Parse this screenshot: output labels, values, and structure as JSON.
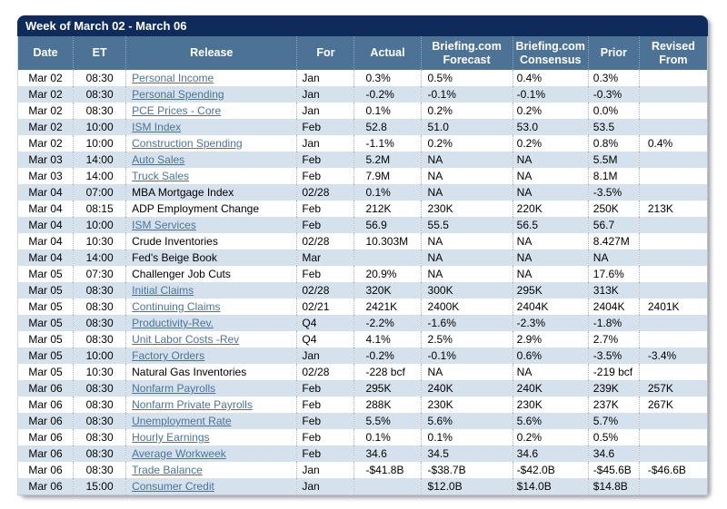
{
  "window": {
    "title": "Week of March 02 - March 06"
  },
  "colors": {
    "title_bar": "#0E2B5C",
    "header_bg": "#4C7396",
    "header_text": "#FFFFFF",
    "alt_row": "#D5E2EE",
    "link": "#4C7397",
    "body_text": "#000000"
  },
  "table": {
    "columns": [
      {
        "key": "date",
        "label": "Date"
      },
      {
        "key": "et",
        "label": "ET"
      },
      {
        "key": "release",
        "label": "Release"
      },
      {
        "key": "for",
        "label": "For"
      },
      {
        "key": "actual",
        "label": "Actual"
      },
      {
        "key": "forecast",
        "label": "Briefing.com\nForecast"
      },
      {
        "key": "consensus",
        "label": "Briefing.com\nConsensus"
      },
      {
        "key": "prior",
        "label": "Prior"
      },
      {
        "key": "revised",
        "label": "Revised\nFrom"
      }
    ],
    "rows": [
      {
        "date": "Mar 02",
        "et": "08:30",
        "release": "Personal Income",
        "is_link": true,
        "for": "Jan",
        "actual": "0.3%",
        "forecast": "0.5%",
        "consensus": "0.4%",
        "prior": "0.3%",
        "revised": ""
      },
      {
        "date": "Mar 02",
        "et": "08:30",
        "release": "Personal Spending",
        "is_link": true,
        "for": "Jan",
        "actual": "-0.2%",
        "forecast": "-0.1%",
        "consensus": "-0.1%",
        "prior": "-0.3%",
        "revised": ""
      },
      {
        "date": "Mar 02",
        "et": "08:30",
        "release": "PCE Prices - Core",
        "is_link": true,
        "for": "Jan",
        "actual": "0.1%",
        "forecast": "0.2%",
        "consensus": "0.2%",
        "prior": "0.0%",
        "revised": ""
      },
      {
        "date": "Mar 02",
        "et": "10:00",
        "release": "ISM Index",
        "is_link": true,
        "for": "Feb",
        "actual": "52.8",
        "forecast": "51.0",
        "consensus": "53.0",
        "prior": "53.5",
        "revised": ""
      },
      {
        "date": "Mar 02",
        "et": "10:00",
        "release": "Construction Spending",
        "is_link": true,
        "for": "Jan",
        "actual": "-1.1%",
        "forecast": "0.2%",
        "consensus": "0.2%",
        "prior": "0.8%",
        "revised": "0.4%"
      },
      {
        "date": "Mar 03",
        "et": "14:00",
        "release": "Auto Sales",
        "is_link": true,
        "for": "Feb",
        "actual": "5.2M",
        "forecast": "NA",
        "consensus": "NA",
        "prior": "5.5M",
        "revised": ""
      },
      {
        "date": "Mar 03",
        "et": "14:00",
        "release": "Truck Sales",
        "is_link": true,
        "for": "Feb",
        "actual": "7.9M",
        "forecast": "NA",
        "consensus": "NA",
        "prior": "8.1M",
        "revised": ""
      },
      {
        "date": "Mar 04",
        "et": "07:00",
        "release": "MBA Mortgage Index",
        "is_link": false,
        "for": "02/28",
        "actual": "0.1%",
        "forecast": "NA",
        "consensus": "NA",
        "prior": "-3.5%",
        "revised": ""
      },
      {
        "date": "Mar 04",
        "et": "08:15",
        "release": "ADP Employment Change",
        "is_link": false,
        "for": "Feb",
        "actual": "212K",
        "forecast": "230K",
        "consensus": "220K",
        "prior": "250K",
        "revised": "213K"
      },
      {
        "date": "Mar 04",
        "et": "10:00",
        "release": "ISM Services",
        "is_link": true,
        "for": "Feb",
        "actual": "56.9",
        "forecast": "55.5",
        "consensus": "56.5",
        "prior": "56.7",
        "revised": ""
      },
      {
        "date": "Mar 04",
        "et": "10:30",
        "release": "Crude Inventories",
        "is_link": false,
        "for": "02/28",
        "actual": "10.303M",
        "forecast": "NA",
        "consensus": "NA",
        "prior": "8.427M",
        "revised": ""
      },
      {
        "date": "Mar 04",
        "et": "14:00",
        "release": "Fed's Beige Book",
        "is_link": false,
        "for": "Mar",
        "actual": "",
        "forecast": "NA",
        "consensus": "NA",
        "prior": "NA",
        "revised": ""
      },
      {
        "date": "Mar 05",
        "et": "07:30",
        "release": "Challenger Job Cuts",
        "is_link": false,
        "for": "Feb",
        "actual": "20.9%",
        "forecast": "NA",
        "consensus": "NA",
        "prior": "17.6%",
        "revised": ""
      },
      {
        "date": "Mar 05",
        "et": "08:30",
        "release": "Initial Claims",
        "is_link": true,
        "for": "02/28",
        "actual": "320K",
        "forecast": "300K",
        "consensus": "295K",
        "prior": "313K",
        "revised": ""
      },
      {
        "date": "Mar 05",
        "et": "08:30",
        "release": "Continuing Claims",
        "is_link": true,
        "for": "02/21",
        "actual": "2421K",
        "forecast": "2400K",
        "consensus": "2404K",
        "prior": "2404K",
        "revised": "2401K"
      },
      {
        "date": "Mar 05",
        "et": "08:30",
        "release": "Productivity-Rev.",
        "is_link": true,
        "for": "Q4",
        "actual": "-2.2%",
        "forecast": "-1.6%",
        "consensus": "-2.3%",
        "prior": "-1.8%",
        "revised": ""
      },
      {
        "date": "Mar 05",
        "et": "08:30",
        "release": "Unit Labor Costs -Rev",
        "is_link": true,
        "for": "Q4",
        "actual": "4.1%",
        "forecast": "2.5%",
        "consensus": "2.9%",
        "prior": "2.7%",
        "revised": ""
      },
      {
        "date": "Mar 05",
        "et": "10:00",
        "release": "Factory Orders",
        "is_link": true,
        "for": "Jan",
        "actual": "-0.2%",
        "forecast": "-0.1%",
        "consensus": "0.6%",
        "prior": "-3.5%",
        "revised": "-3.4%"
      },
      {
        "date": "Mar 05",
        "et": "10:30",
        "release": "Natural Gas Inventories",
        "is_link": false,
        "for": "02/28",
        "actual": "-228 bcf",
        "forecast": "NA",
        "consensus": "NA",
        "prior": "-219 bcf",
        "revised": ""
      },
      {
        "date": "Mar 06",
        "et": "08:30",
        "release": "Nonfarm Payrolls",
        "is_link": true,
        "for": "Feb",
        "actual": "295K",
        "forecast": "240K",
        "consensus": "240K",
        "prior": "239K",
        "revised": "257K"
      },
      {
        "date": "Mar 06",
        "et": "08:30",
        "release": "Nonfarm Private Payrolls",
        "is_link": true,
        "for": "Feb",
        "actual": "288K",
        "forecast": "230K",
        "consensus": "230K",
        "prior": "237K",
        "revised": "267K"
      },
      {
        "date": "Mar 06",
        "et": "08:30",
        "release": "Unemployment Rate",
        "is_link": true,
        "for": "Feb",
        "actual": "5.5%",
        "forecast": "5.6%",
        "consensus": "5.6%",
        "prior": "5.7%",
        "revised": ""
      },
      {
        "date": "Mar 06",
        "et": "08:30",
        "release": "Hourly Earnings",
        "is_link": true,
        "for": "Feb",
        "actual": "0.1%",
        "forecast": "0.1%",
        "consensus": "0.2%",
        "prior": "0.5%",
        "revised": ""
      },
      {
        "date": "Mar 06",
        "et": "08:30",
        "release": "Average Workweek",
        "is_link": true,
        "for": "Feb",
        "actual": "34.6",
        "forecast": "34.5",
        "consensus": "34.6",
        "prior": "34.6",
        "revised": ""
      },
      {
        "date": "Mar 06",
        "et": "08:30",
        "release": "Trade Balance",
        "is_link": true,
        "for": "Jan",
        "actual": "-$41.8B",
        "forecast": "-$38.7B",
        "consensus": "-$42.0B",
        "prior": "-$45.6B",
        "revised": "-$46.6B"
      },
      {
        "date": "Mar 06",
        "et": "15:00",
        "release": "Consumer Credit",
        "is_link": true,
        "for": "Jan",
        "actual": "",
        "forecast": "$12.0B",
        "consensus": "$14.0B",
        "prior": "$14.8B",
        "revised": ""
      }
    ]
  }
}
